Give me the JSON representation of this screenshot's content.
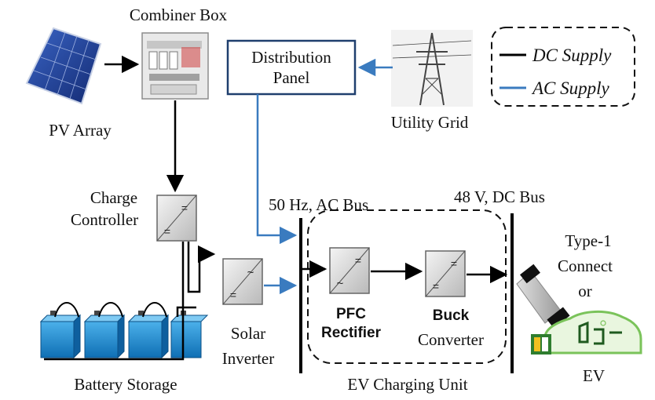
{
  "labels": {
    "combiner_box": "Combiner Box",
    "pv_array": "PV Array",
    "distribution_panel_line1": "Distribution",
    "distribution_panel_line2": "Panel",
    "utility_grid": "Utility Grid",
    "charge_controller_line1": "Charge",
    "charge_controller_line2": "Controller",
    "ac_bus": "50 Hz, AC Bus",
    "dc_bus": "48 V, DC Bus",
    "type1_line1": "Type-1",
    "type1_line2": "Connect",
    "type1_line3": "or",
    "pfc_line1": "PFC",
    "pfc_line2": "Rectifier",
    "buck_line1": "Buck",
    "buck_line2": "Converter",
    "solar_inverter_line1": "Solar",
    "solar_inverter_line2": "Inverter",
    "battery_storage": "Battery Storage",
    "ev_charging_unit": "EV Charging Unit",
    "ev": "EV"
  },
  "legend": {
    "dc_supply": "DC Supply",
    "ac_supply": "AC Supply"
  },
  "colors": {
    "dc_line": "#000000",
    "ac_line": "#3a7bbf",
    "battery": "#1a86d0",
    "solar_panel": "#1d3f9a"
  },
  "symbols": {
    "dc": "=",
    "ac": "~"
  }
}
